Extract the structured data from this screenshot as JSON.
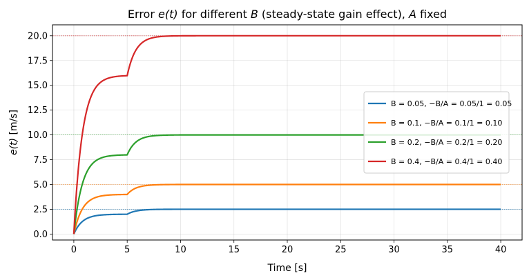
{
  "chart_data": {
    "type": "line",
    "title": "Error e(t) for different B (steady-state gain effect), A fixed",
    "xlabel": "Time [s]",
    "ylabel": "e(t) [m/s]",
    "xlim": [
      -2,
      42
    ],
    "ylim": [
      -0.6,
      21.1
    ],
    "xticks": [
      0,
      5,
      10,
      15,
      20,
      25,
      30,
      35,
      40
    ],
    "xtick_labels": [
      "0",
      "5",
      "10",
      "15",
      "20",
      "25",
      "30",
      "35",
      "40"
    ],
    "yticks": [
      0,
      2.5,
      5,
      7.5,
      10,
      12.5,
      15,
      17.5,
      20
    ],
    "ytick_labels": [
      "0.0",
      "2.5",
      "5.0",
      "7.5",
      "10.0",
      "12.5",
      "15.0",
      "17.5",
      "20.0"
    ],
    "grid": true,
    "legend_position": "center-right",
    "model": {
      "t_max": 40,
      "step_time": 5,
      "first_stage_fraction": 0.8,
      "time_constant": 0.8
    },
    "series": [
      {
        "name": "B=0.05",
        "label": "B = 0.05,  −B/A = 0.05/1 = 0.05",
        "B": 0.05,
        "steady_state": 2.5,
        "color": "#1f77b4"
      },
      {
        "name": "B=0.1",
        "label": "B = 0.1,  −B/A = 0.1/1 = 0.10",
        "B": 0.1,
        "steady_state": 5.0,
        "color": "#ff7f0e"
      },
      {
        "name": "B=0.2",
        "label": "B = 0.2,  −B/A = 0.2/1 = 0.20",
        "B": 0.2,
        "steady_state": 10.0,
        "color": "#2ca02c"
      },
      {
        "name": "B=0.4",
        "label": "B = 0.4,  −B/A = 0.4/1 = 0.40",
        "B": 0.4,
        "steady_state": 20.0,
        "color": "#d62728"
      }
    ],
    "reference_lines": [
      {
        "y": 2.5,
        "color": "#1f77b4"
      },
      {
        "y": 5.0,
        "color": "#ff7f0e"
      },
      {
        "y": 10.0,
        "color": "#2ca02c"
      },
      {
        "y": 20.0,
        "color": "#d62728"
      }
    ]
  }
}
